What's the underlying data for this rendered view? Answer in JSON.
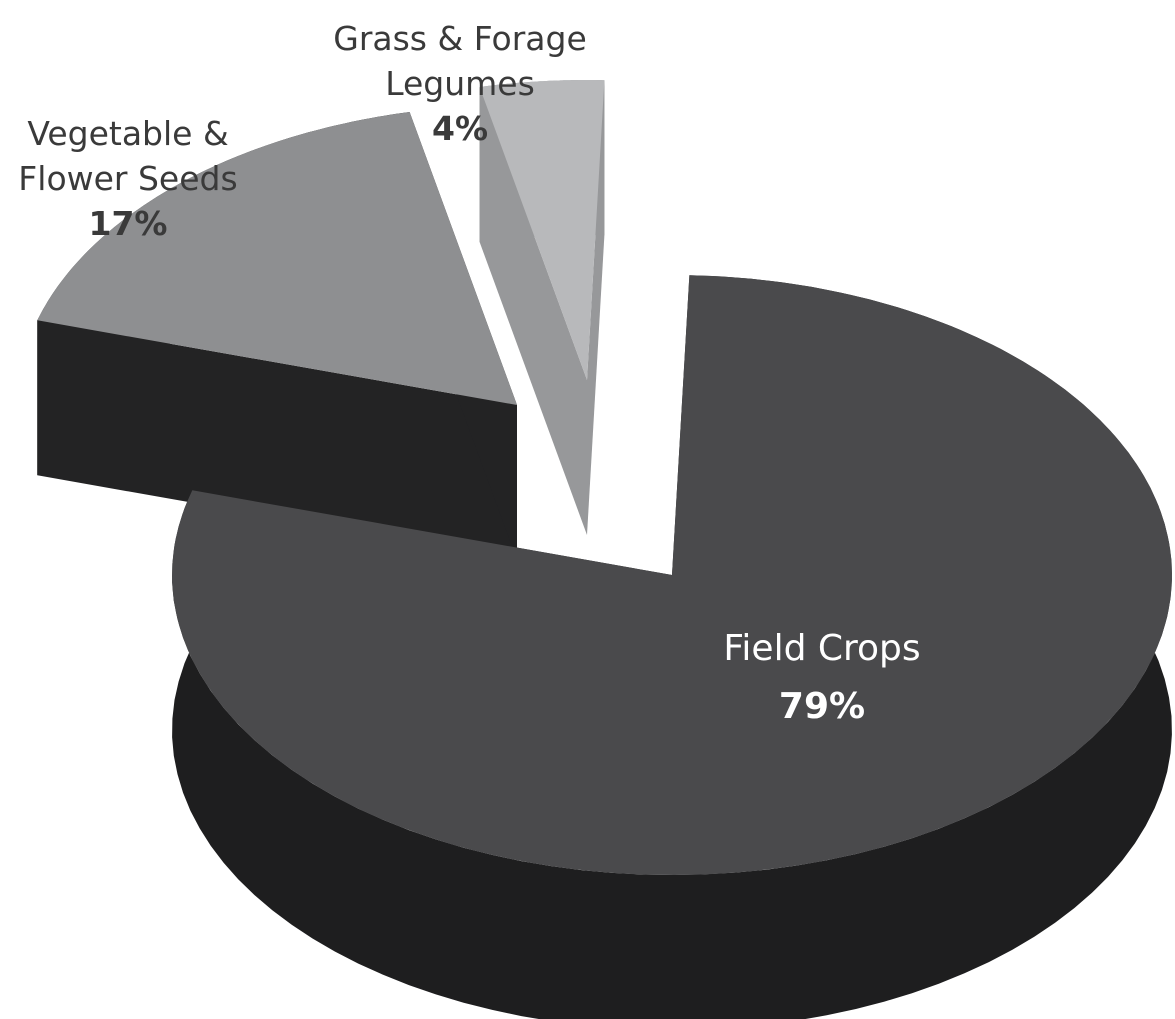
{
  "chart_data": {
    "type": "pie",
    "title": "",
    "three_d": true,
    "exploded": true,
    "slices": [
      {
        "id": "field-crops",
        "label_lines": [
          "Field Crops"
        ],
        "percent_label": "79%",
        "value": 79,
        "top_color": "#4a4a4c",
        "side_color": "#1e1e1f",
        "label_color": "#ffffff",
        "label_inside": true
      },
      {
        "id": "vegetable-flower-seeds",
        "label_lines": [
          "Vegetable &",
          "Flower Seeds"
        ],
        "percent_label": "17%",
        "value": 17,
        "top_color": "#8e8f91",
        "side_color": "#232324",
        "label_color": "#3a3a3a",
        "label_inside": false
      },
      {
        "id": "grass-forage-legumes",
        "label_lines": [
          "Grass & Forage",
          "Legumes"
        ],
        "percent_label": "4%",
        "value": 4,
        "top_color": "#b8b9bb",
        "side_color": "#97989a",
        "label_color": "#3a3a3a",
        "label_inside": false
      }
    ]
  }
}
